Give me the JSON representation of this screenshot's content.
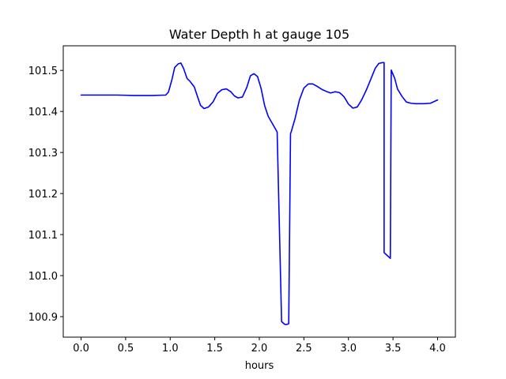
{
  "chart_data": {
    "type": "line",
    "title": "Water Depth h at gauge 105",
    "xlabel": "hours",
    "ylabel": "",
    "xlim": [
      -0.2,
      4.2
    ],
    "ylim": [
      100.85,
      101.56
    ],
    "xticks": [
      0.0,
      0.5,
      1.0,
      1.5,
      2.0,
      2.5,
      3.0,
      3.5,
      4.0
    ],
    "xtick_labels": [
      "0.0",
      "0.5",
      "1.0",
      "1.5",
      "2.0",
      "2.5",
      "3.0",
      "3.5",
      "4.0"
    ],
    "yticks": [
      100.9,
      101.0,
      101.1,
      101.2,
      101.3,
      101.4,
      101.5
    ],
    "ytick_labels": [
      "100.9",
      "101.0",
      "101.1",
      "101.2",
      "101.3",
      "101.4",
      "101.5"
    ],
    "grid": false,
    "series": [
      {
        "color": "#0000ff",
        "x": [
          0.0,
          0.2,
          0.4,
          0.6,
          0.8,
          0.95,
          0.98,
          1.02,
          1.05,
          1.09,
          1.12,
          1.15,
          1.19,
          1.22,
          1.27,
          1.31,
          1.34,
          1.38,
          1.43,
          1.48,
          1.53,
          1.58,
          1.63,
          1.68,
          1.72,
          1.76,
          1.81,
          1.86,
          1.9,
          1.94,
          1.98,
          2.02,
          2.06,
          2.1,
          2.15,
          2.2,
          2.25,
          2.28,
          2.29,
          2.31,
          2.33,
          2.35,
          2.35,
          2.36,
          2.4,
          2.45,
          2.5,
          2.55,
          2.6,
          2.65,
          2.7,
          2.75,
          2.8,
          2.85,
          2.9,
          2.95,
          3.0,
          3.05,
          3.1,
          3.15,
          3.2,
          3.25,
          3.3,
          3.34,
          3.38,
          3.4,
          3.4,
          3.44,
          3.47,
          3.48,
          3.52,
          3.55,
          3.6,
          3.65,
          3.7,
          3.75,
          3.85,
          3.92,
          4.0
        ],
        "y": [
          101.44,
          101.44,
          101.44,
          101.439,
          101.439,
          101.44,
          101.447,
          101.478,
          101.507,
          101.516,
          101.518,
          101.505,
          101.48,
          101.474,
          101.46,
          101.434,
          101.415,
          101.407,
          101.411,
          101.423,
          101.444,
          101.453,
          101.455,
          101.448,
          101.438,
          101.433,
          101.435,
          101.459,
          101.487,
          101.492,
          101.485,
          101.456,
          101.414,
          101.388,
          101.369,
          101.35,
          100.888,
          100.882,
          100.881,
          100.881,
          100.883,
          101.346,
          101.346,
          101.352,
          101.382,
          101.428,
          101.457,
          101.467,
          101.467,
          101.461,
          101.454,
          101.449,
          101.445,
          101.448,
          101.446,
          101.436,
          101.418,
          101.408,
          101.411,
          101.429,
          101.452,
          101.478,
          101.505,
          101.517,
          101.519,
          101.519,
          101.056,
          101.048,
          101.042,
          101.501,
          101.48,
          101.455,
          101.437,
          101.423,
          101.42,
          101.419,
          101.419,
          101.42,
          101.428
        ]
      }
    ]
  }
}
